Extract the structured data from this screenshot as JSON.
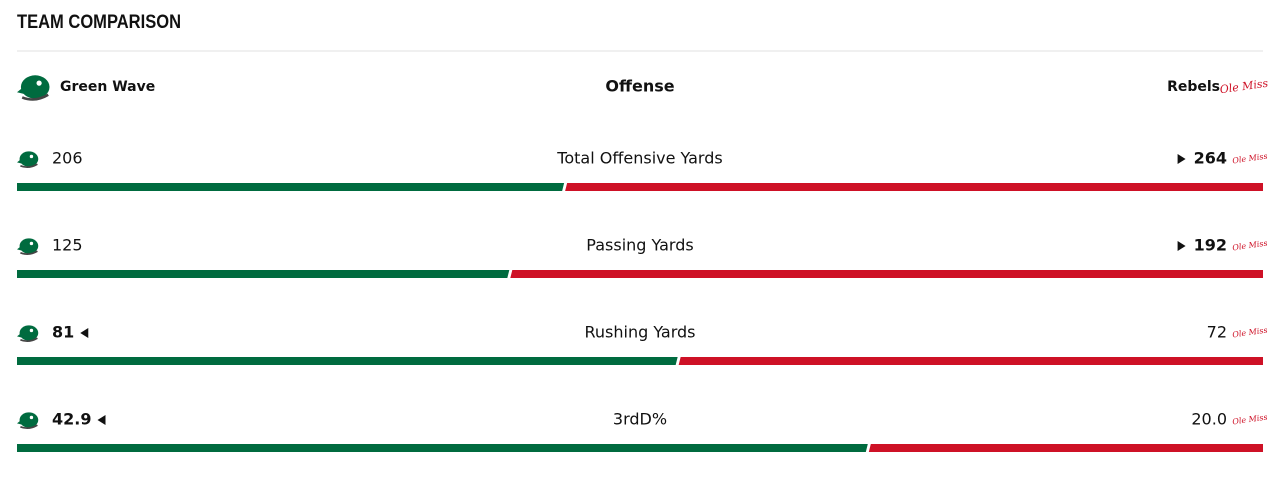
{
  "header": {
    "title": "TEAM COMPARISON"
  },
  "teams": {
    "home": {
      "name": "Green Wave",
      "color": "#006b3f"
    },
    "away": {
      "name": "Rebels",
      "logo_text": "Ole Miss",
      "color": "#ce1126"
    }
  },
  "section": "Offense",
  "stats": [
    {
      "label": "Total Offensive Yards",
      "home": 206,
      "away": 264,
      "leader": "away"
    },
    {
      "label": "Passing Yards",
      "home": 125,
      "away": 192,
      "leader": "away"
    },
    {
      "label": "Rushing Yards",
      "home": 81,
      "away": 72,
      "leader": "home"
    },
    {
      "label": "3rdD%",
      "home": 42.9,
      "away": {
        "value": 20,
        "label": "20.0"
      },
      "leader": "home"
    }
  ]
}
